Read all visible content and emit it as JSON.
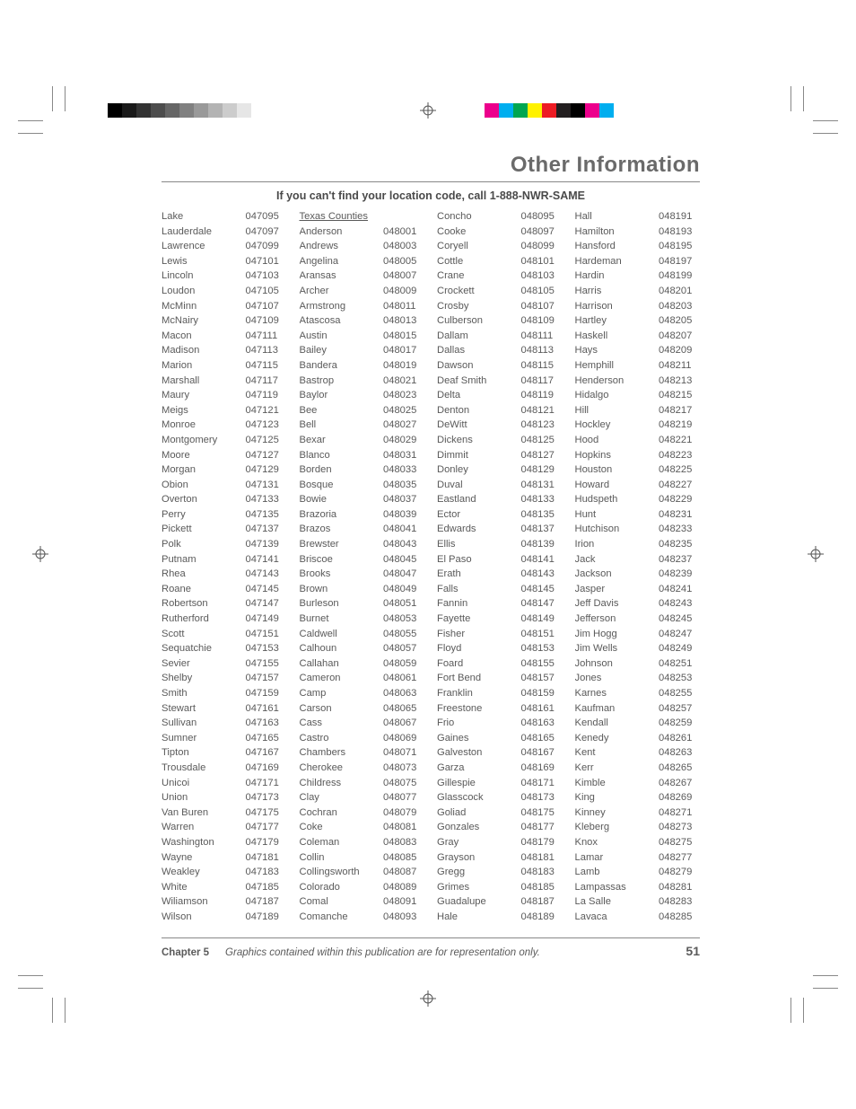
{
  "title": "Other Information",
  "subhead": "If you can't find your location code, call 1-888-NWR-SAME",
  "chapter_label": "Chapter 5",
  "footer_note": "Graphics contained within this publication are for representation only.",
  "page_number": "51",
  "color_bar_left": [
    "#000000",
    "#1a1a1a",
    "#333333",
    "#4d4d4d",
    "#666666",
    "#808080",
    "#999999",
    "#b3b3b3",
    "#cccccc",
    "#e6e6e6",
    "#ffffff"
  ],
  "color_bar_right": [
    "#ec008c",
    "#00aeef",
    "#00a651",
    "#fff200",
    "#ed1c24",
    "#231f20",
    "#000000",
    "#ec008c",
    "#00aeef",
    "#ffffff"
  ],
  "columns": [
    {
      "header": null,
      "rows": [
        [
          "Lake",
          "047095"
        ],
        [
          "Lauderdale",
          "047097"
        ],
        [
          "Lawrence",
          "047099"
        ],
        [
          "Lewis",
          "047101"
        ],
        [
          "Lincoln",
          "047103"
        ],
        [
          "Loudon",
          "047105"
        ],
        [
          "McMinn",
          "047107"
        ],
        [
          "McNairy",
          "047109"
        ],
        [
          "Macon",
          "047111"
        ],
        [
          "Madison",
          "047113"
        ],
        [
          "Marion",
          "047115"
        ],
        [
          "Marshall",
          "047117"
        ],
        [
          "Maury",
          "047119"
        ],
        [
          "Meigs",
          "047121"
        ],
        [
          "Monroe",
          "047123"
        ],
        [
          "Montgomery",
          "047125"
        ],
        [
          "Moore",
          "047127"
        ],
        [
          "Morgan",
          "047129"
        ],
        [
          "Obion",
          "047131"
        ],
        [
          "Overton",
          "047133"
        ],
        [
          "Perry",
          "047135"
        ],
        [
          "Pickett",
          "047137"
        ],
        [
          "Polk",
          "047139"
        ],
        [
          "Putnam",
          "047141"
        ],
        [
          "Rhea",
          "047143"
        ],
        [
          "Roane",
          "047145"
        ],
        [
          "Robertson",
          "047147"
        ],
        [
          "Rutherford",
          "047149"
        ],
        [
          "Scott",
          "047151"
        ],
        [
          "Sequatchie",
          "047153"
        ],
        [
          "Sevier",
          "047155"
        ],
        [
          "Shelby",
          "047157"
        ],
        [
          "Smith",
          "047159"
        ],
        [
          "Stewart",
          "047161"
        ],
        [
          "Sullivan",
          "047163"
        ],
        [
          "Sumner",
          "047165"
        ],
        [
          "Tipton",
          "047167"
        ],
        [
          "Trousdale",
          "047169"
        ],
        [
          "Unicoi",
          "047171"
        ],
        [
          "Union",
          "047173"
        ],
        [
          "Van Buren",
          "047175"
        ],
        [
          "Warren",
          "047177"
        ],
        [
          "Washington",
          "047179"
        ],
        [
          "Wayne",
          "047181"
        ],
        [
          "Weakley",
          "047183"
        ],
        [
          "White",
          "047185"
        ],
        [
          "Wiliamson",
          "047187"
        ],
        [
          "Wilson",
          "047189"
        ]
      ]
    },
    {
      "header": "Texas Counties",
      "rows": [
        [
          "Anderson",
          "048001"
        ],
        [
          "Andrews",
          "048003"
        ],
        [
          "Angelina",
          "048005"
        ],
        [
          "Aransas",
          "048007"
        ],
        [
          "Archer",
          "048009"
        ],
        [
          "Armstrong",
          "048011"
        ],
        [
          "Atascosa",
          "048013"
        ],
        [
          "Austin",
          "048015"
        ],
        [
          "Bailey",
          "048017"
        ],
        [
          "Bandera",
          "048019"
        ],
        [
          "Bastrop",
          "048021"
        ],
        [
          "Baylor",
          "048023"
        ],
        [
          "Bee",
          "048025"
        ],
        [
          "Bell",
          "048027"
        ],
        [
          "Bexar",
          "048029"
        ],
        [
          "Blanco",
          "048031"
        ],
        [
          "Borden",
          "048033"
        ],
        [
          "Bosque",
          "048035"
        ],
        [
          "Bowie",
          "048037"
        ],
        [
          "Brazoria",
          "048039"
        ],
        [
          "Brazos",
          "048041"
        ],
        [
          "Brewster",
          "048043"
        ],
        [
          "Briscoe",
          "048045"
        ],
        [
          "Brooks",
          "048047"
        ],
        [
          "Brown",
          "048049"
        ],
        [
          "Burleson",
          "048051"
        ],
        [
          "Burnet",
          "048053"
        ],
        [
          "Caldwell",
          "048055"
        ],
        [
          "Calhoun",
          "048057"
        ],
        [
          "Callahan",
          "048059"
        ],
        [
          "Cameron",
          "048061"
        ],
        [
          "Camp",
          "048063"
        ],
        [
          "Carson",
          "048065"
        ],
        [
          "Cass",
          "048067"
        ],
        [
          "Castro",
          "048069"
        ],
        [
          "Chambers",
          "048071"
        ],
        [
          "Cherokee",
          "048073"
        ],
        [
          "Childress",
          "048075"
        ],
        [
          "Clay",
          "048077"
        ],
        [
          "Cochran",
          "048079"
        ],
        [
          "Coke",
          "048081"
        ],
        [
          "Coleman",
          "048083"
        ],
        [
          "Collin",
          "048085"
        ],
        [
          "Collingsworth",
          "048087"
        ],
        [
          "Colorado",
          "048089"
        ],
        [
          "Comal",
          "048091"
        ],
        [
          "Comanche",
          "048093"
        ]
      ]
    },
    {
      "header": null,
      "rows": [
        [
          "Concho",
          "048095"
        ],
        [
          "Cooke",
          "048097"
        ],
        [
          "Coryell",
          "048099"
        ],
        [
          "Cottle",
          "048101"
        ],
        [
          "Crane",
          "048103"
        ],
        [
          "Crockett",
          "048105"
        ],
        [
          "Crosby",
          "048107"
        ],
        [
          "Culberson",
          "048109"
        ],
        [
          "Dallam",
          "048111"
        ],
        [
          "Dallas",
          "048113"
        ],
        [
          "Dawson",
          "048115"
        ],
        [
          "Deaf Smith",
          "048117"
        ],
        [
          "Delta",
          "048119"
        ],
        [
          "Denton",
          "048121"
        ],
        [
          "DeWitt",
          "048123"
        ],
        [
          "Dickens",
          "048125"
        ],
        [
          "Dimmit",
          "048127"
        ],
        [
          "Donley",
          "048129"
        ],
        [
          "Duval",
          "048131"
        ],
        [
          "Eastland",
          "048133"
        ],
        [
          "Ector",
          "048135"
        ],
        [
          "Edwards",
          "048137"
        ],
        [
          "Ellis",
          "048139"
        ],
        [
          "El Paso",
          "048141"
        ],
        [
          "Erath",
          "048143"
        ],
        [
          "Falls",
          "048145"
        ],
        [
          "Fannin",
          "048147"
        ],
        [
          "Fayette",
          "048149"
        ],
        [
          "Fisher",
          "048151"
        ],
        [
          "Floyd",
          "048153"
        ],
        [
          "Foard",
          "048155"
        ],
        [
          "Fort Bend",
          "048157"
        ],
        [
          "Franklin",
          "048159"
        ],
        [
          "Freestone",
          "048161"
        ],
        [
          "Frio",
          "048163"
        ],
        [
          "Gaines",
          "048165"
        ],
        [
          "Galveston",
          "048167"
        ],
        [
          "Garza",
          "048169"
        ],
        [
          "Gillespie",
          "048171"
        ],
        [
          "Glasscock",
          "048173"
        ],
        [
          "Goliad",
          "048175"
        ],
        [
          "Gonzales",
          "048177"
        ],
        [
          "Gray",
          "048179"
        ],
        [
          "Grayson",
          "048181"
        ],
        [
          "Gregg",
          "048183"
        ],
        [
          "Grimes",
          "048185"
        ],
        [
          "Guadalupe",
          "048187"
        ],
        [
          "Hale",
          "048189"
        ]
      ]
    },
    {
      "header": null,
      "rows": [
        [
          "Hall",
          "048191"
        ],
        [
          "Hamilton",
          "048193"
        ],
        [
          "Hansford",
          "048195"
        ],
        [
          "Hardeman",
          "048197"
        ],
        [
          "Hardin",
          "048199"
        ],
        [
          "Harris",
          "048201"
        ],
        [
          "Harrison",
          "048203"
        ],
        [
          "Hartley",
          "048205"
        ],
        [
          "Haskell",
          "048207"
        ],
        [
          "Hays",
          "048209"
        ],
        [
          "Hemphill",
          "048211"
        ],
        [
          "Henderson",
          "048213"
        ],
        [
          "Hidalgo",
          "048215"
        ],
        [
          "Hill",
          "048217"
        ],
        [
          "Hockley",
          "048219"
        ],
        [
          "Hood",
          "048221"
        ],
        [
          "Hopkins",
          "048223"
        ],
        [
          "Houston",
          "048225"
        ],
        [
          "Howard",
          "048227"
        ],
        [
          "Hudspeth",
          "048229"
        ],
        [
          "Hunt",
          "048231"
        ],
        [
          "Hutchison",
          "048233"
        ],
        [
          "Irion",
          "048235"
        ],
        [
          "Jack",
          "048237"
        ],
        [
          "Jackson",
          "048239"
        ],
        [
          "Jasper",
          "048241"
        ],
        [
          "Jeff Davis",
          "048243"
        ],
        [
          "Jefferson",
          "048245"
        ],
        [
          "Jim Hogg",
          "048247"
        ],
        [
          "Jim Wells",
          "048249"
        ],
        [
          "Johnson",
          "048251"
        ],
        [
          "Jones",
          "048253"
        ],
        [
          "Karnes",
          "048255"
        ],
        [
          "Kaufman",
          "048257"
        ],
        [
          "Kendall",
          "048259"
        ],
        [
          "Kenedy",
          "048261"
        ],
        [
          "Kent",
          "048263"
        ],
        [
          "Kerr",
          "048265"
        ],
        [
          "Kimble",
          "048267"
        ],
        [
          "King",
          "048269"
        ],
        [
          "Kinney",
          "048271"
        ],
        [
          "Kleberg",
          "048273"
        ],
        [
          "Knox",
          "048275"
        ],
        [
          "Lamar",
          "048277"
        ],
        [
          "Lamb",
          "048279"
        ],
        [
          "Lampassas",
          "048281"
        ],
        [
          "La Salle",
          "048283"
        ],
        [
          "Lavaca",
          "048285"
        ]
      ]
    }
  ]
}
